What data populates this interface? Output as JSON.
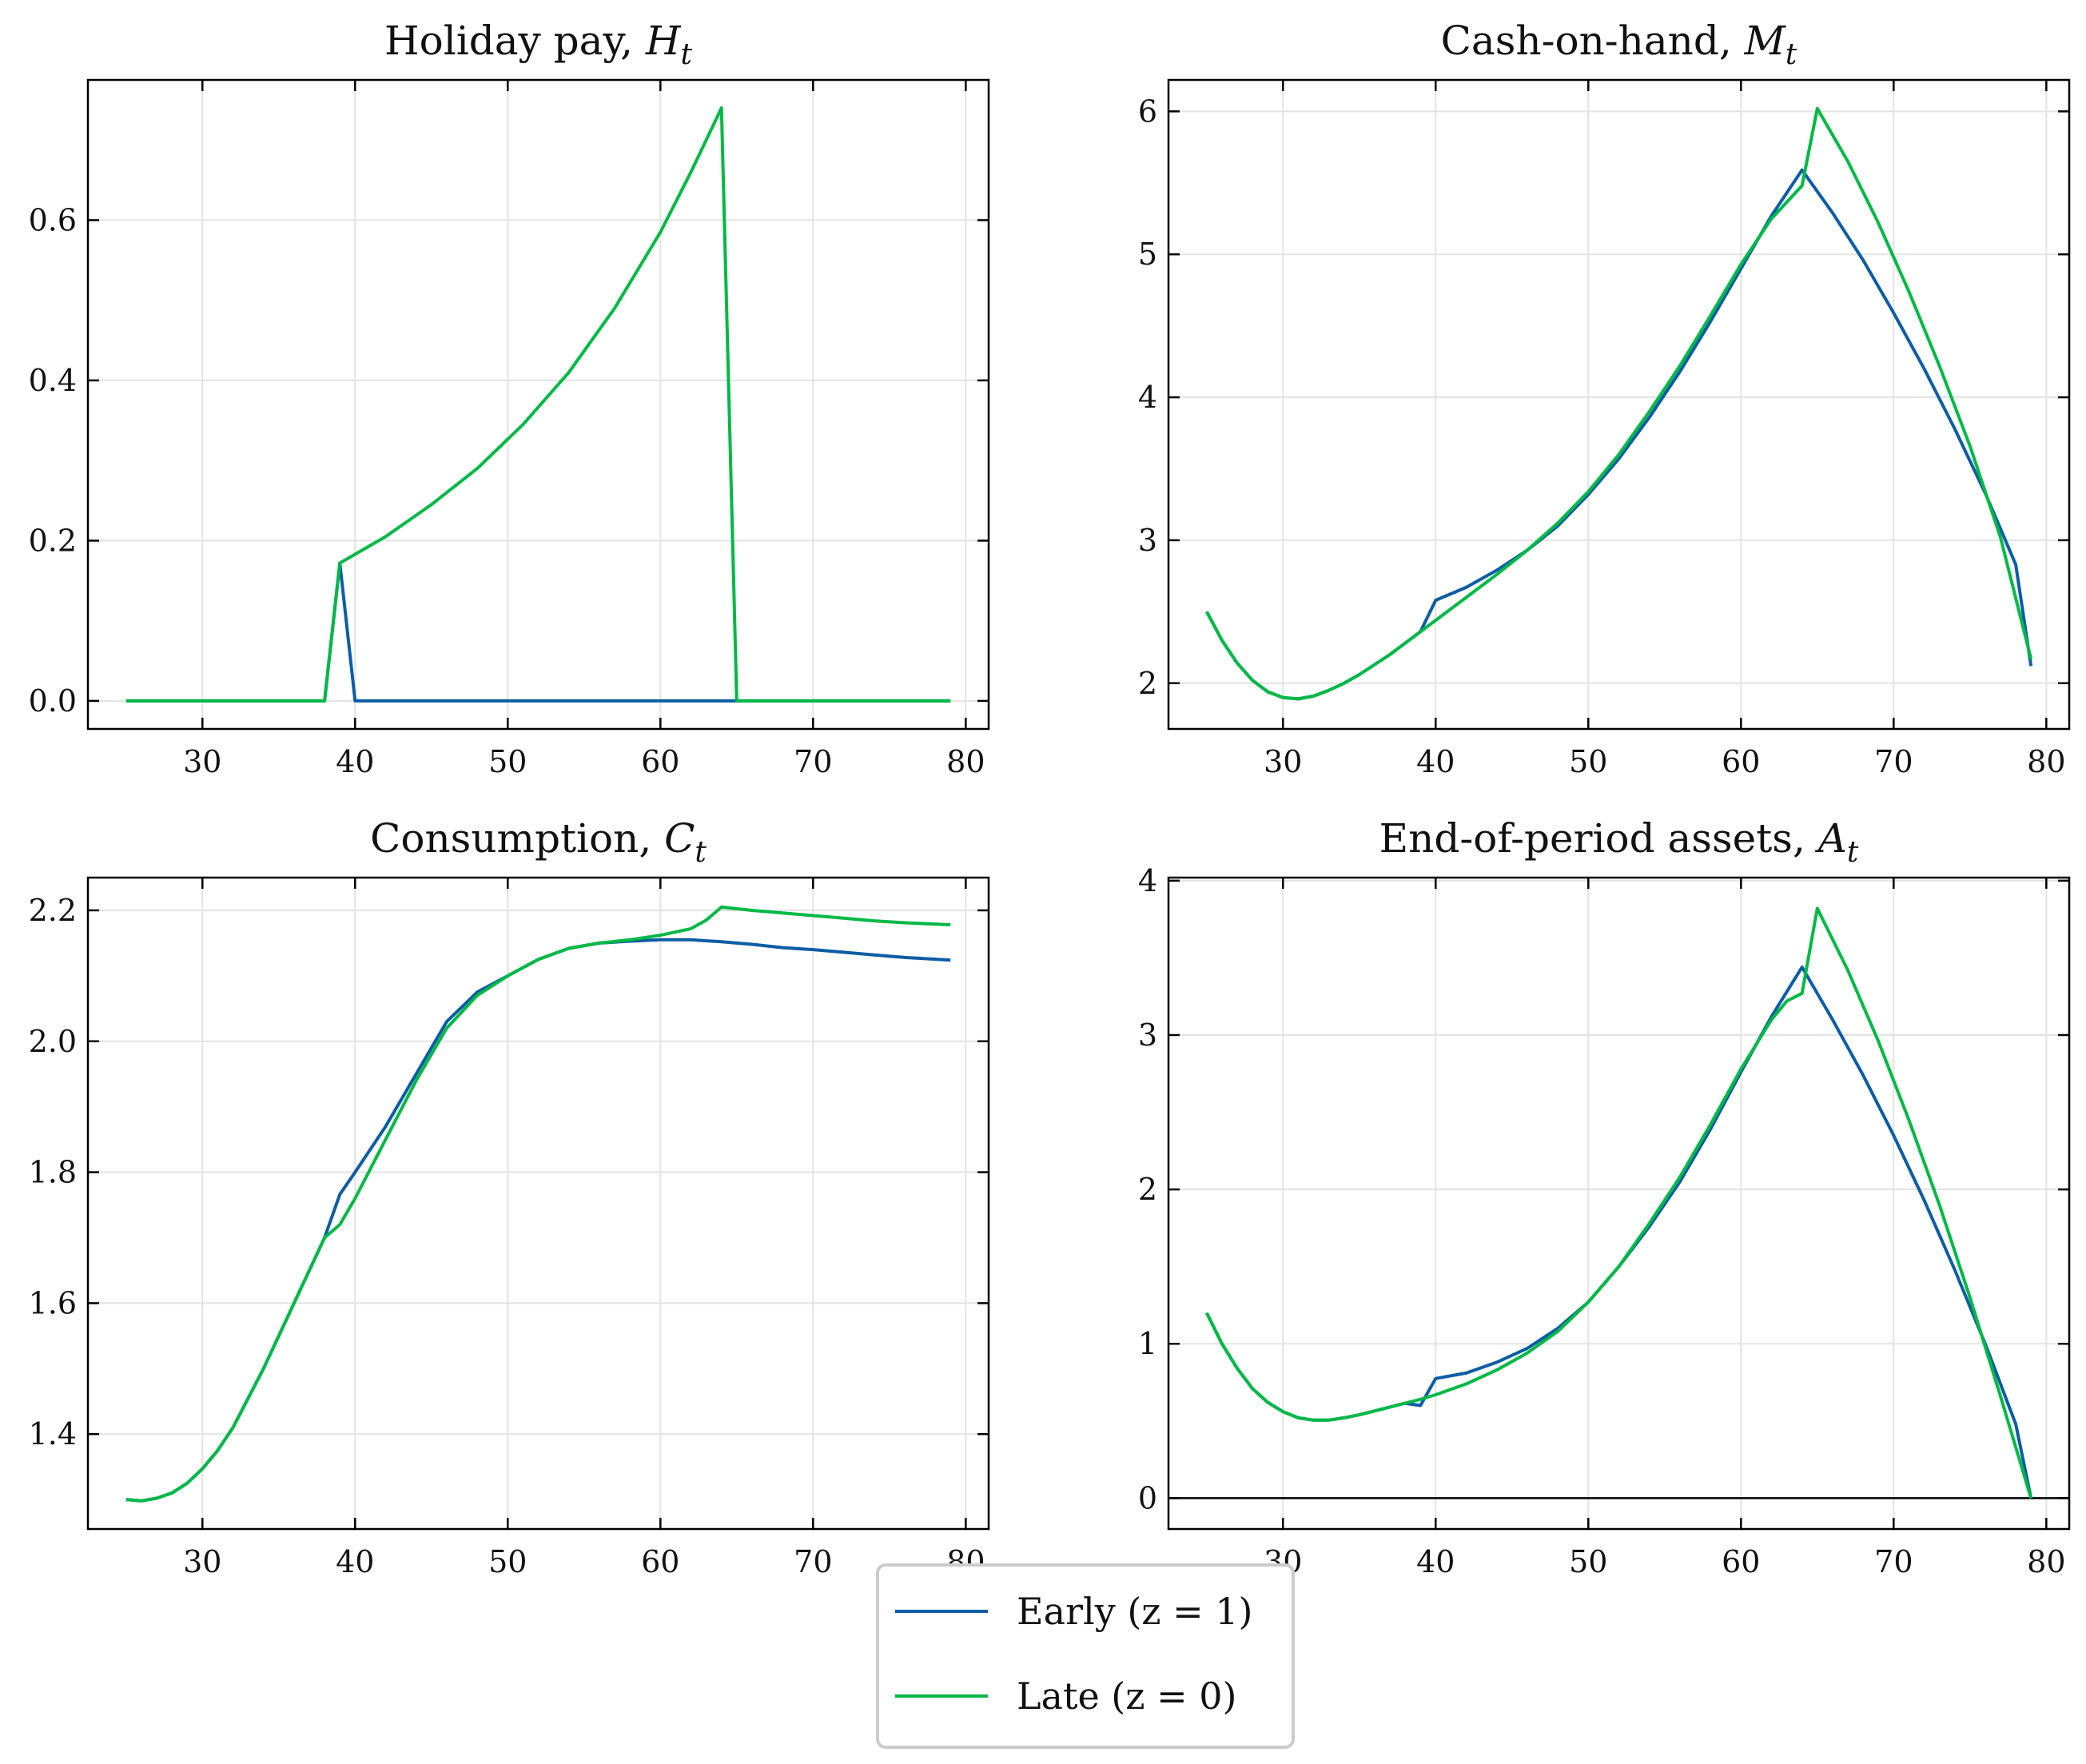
{
  "colors": {
    "early": "#0C5DA5",
    "late": "#00B945",
    "grid": "#e3e3e3",
    "axis": "#000000"
  },
  "legend": {
    "placement": "bottom-center",
    "items": [
      {
        "name": "Early (z = 1)",
        "color": "#0C5DA5"
      },
      {
        "name": "Late (z = 0)",
        "color": "#00B945"
      }
    ]
  },
  "chart_data": [
    {
      "type": "line",
      "title": "Holiday pay, H",
      "title_sub": "t",
      "xlabel": "",
      "ylabel": "",
      "xlim": [
        22.5,
        81.5
      ],
      "ylim": [
        -0.035,
        0.775
      ],
      "xticks": [
        30,
        40,
        50,
        60,
        70,
        80
      ],
      "yticks": [
        0.0,
        0.2,
        0.4,
        0.6
      ],
      "ytick_labels": [
        "0.0",
        "0.2",
        "0.4",
        "0.6"
      ],
      "grid": true,
      "zero_line": false,
      "series": [
        {
          "name": "Early (z = 1)",
          "x": [
            25,
            38,
            39,
            40,
            79
          ],
          "y": [
            0,
            0,
            0.172,
            0,
            0
          ]
        },
        {
          "name": "Late (z = 0)",
          "x": [
            25,
            38,
            39,
            42,
            45,
            48,
            51,
            54,
            57,
            60,
            62,
            63,
            64,
            65,
            79
          ],
          "y": [
            0,
            0,
            0.172,
            0.205,
            0.245,
            0.29,
            0.345,
            0.41,
            0.49,
            0.585,
            0.66,
            0.7,
            0.74,
            0,
            0
          ]
        }
      ]
    },
    {
      "type": "line",
      "title": "Cash-on-hand, M",
      "title_sub": "t",
      "xlabel": "",
      "ylabel": "",
      "xlim": [
        22.5,
        81.5
      ],
      "ylim": [
        1.68,
        6.22
      ],
      "xticks": [
        30,
        40,
        50,
        60,
        70,
        80
      ],
      "yticks": [
        2,
        3,
        4,
        5,
        6
      ],
      "ytick_labels": [
        "2",
        "3",
        "4",
        "5",
        "6"
      ],
      "grid": true,
      "zero_line": false,
      "series": [
        {
          "name": "Early (z = 1)",
          "x": [
            25,
            26,
            27,
            28,
            29,
            30,
            31,
            32,
            33,
            34,
            35,
            36,
            37,
            38,
            39,
            40,
            42,
            44,
            46,
            48,
            50,
            52,
            54,
            56,
            58,
            60,
            62,
            64,
            66,
            68,
            70,
            72,
            74,
            76,
            78,
            79
          ],
          "y": [
            2.5,
            2.3,
            2.14,
            2.02,
            1.94,
            1.9,
            1.89,
            1.91,
            1.95,
            2.0,
            2.06,
            2.13,
            2.2,
            2.28,
            2.36,
            2.58,
            2.67,
            2.79,
            2.93,
            3.1,
            3.32,
            3.57,
            3.86,
            4.18,
            4.53,
            4.9,
            5.27,
            5.59,
            5.29,
            4.96,
            4.59,
            4.2,
            3.78,
            3.33,
            2.83,
            2.12
          ]
        },
        {
          "name": "Late (z = 0)",
          "x": [
            25,
            26,
            27,
            28,
            29,
            30,
            31,
            32,
            33,
            34,
            35,
            36,
            37,
            38,
            39,
            40,
            42,
            44,
            46,
            48,
            50,
            52,
            54,
            56,
            58,
            60,
            62,
            64,
            65,
            67,
            69,
            71,
            73,
            75,
            77,
            79
          ],
          "y": [
            2.5,
            2.3,
            2.14,
            2.02,
            1.94,
            1.9,
            1.89,
            1.91,
            1.95,
            2.0,
            2.06,
            2.13,
            2.2,
            2.28,
            2.36,
            2.44,
            2.6,
            2.76,
            2.93,
            3.12,
            3.34,
            3.6,
            3.9,
            4.22,
            4.57,
            4.93,
            5.25,
            5.48,
            6.02,
            5.65,
            5.22,
            4.74,
            4.22,
            3.66,
            3.02,
            2.17
          ]
        }
      ]
    },
    {
      "type": "line",
      "title": "Consumption, C",
      "title_sub": "t",
      "xlabel": "",
      "ylabel": "",
      "xlim": [
        22.5,
        81.5
      ],
      "ylim": [
        1.255,
        2.25
      ],
      "xticks": [
        30,
        40,
        50,
        60,
        70,
        80
      ],
      "yticks": [
        1.4,
        1.6,
        1.8,
        2.0,
        2.2
      ],
      "ytick_labels": [
        "1.4",
        "1.6",
        "1.8",
        "2.0",
        "2.2"
      ],
      "grid": true,
      "zero_line": false,
      "series": [
        {
          "name": "Early (z = 1)",
          "x": [
            25,
            26,
            27,
            28,
            29,
            30,
            31,
            32,
            33,
            34,
            35,
            36,
            37,
            38,
            39,
            40,
            42,
            44,
            46,
            48,
            50,
            52,
            54,
            56,
            58,
            60,
            62,
            64,
            66,
            68,
            70,
            72,
            74,
            76,
            79
          ],
          "y": [
            1.3,
            1.298,
            1.302,
            1.31,
            1.325,
            1.347,
            1.375,
            1.41,
            1.455,
            1.5,
            1.55,
            1.6,
            1.65,
            1.7,
            1.766,
            1.8,
            1.87,
            1.95,
            2.03,
            2.075,
            2.1,
            2.125,
            2.142,
            2.15,
            2.153,
            2.155,
            2.155,
            2.152,
            2.148,
            2.143,
            2.14,
            2.136,
            2.132,
            2.128,
            2.124
          ]
        },
        {
          "name": "Late (z = 0)",
          "x": [
            25,
            26,
            27,
            28,
            29,
            30,
            31,
            32,
            33,
            34,
            35,
            36,
            37,
            38,
            39,
            40,
            42,
            44,
            46,
            48,
            50,
            52,
            54,
            56,
            58,
            60,
            62,
            63,
            64,
            66,
            68,
            70,
            72,
            74,
            76,
            79
          ],
          "y": [
            1.3,
            1.298,
            1.302,
            1.31,
            1.325,
            1.347,
            1.375,
            1.41,
            1.455,
            1.5,
            1.55,
            1.6,
            1.65,
            1.7,
            1.72,
            1.76,
            1.85,
            1.94,
            2.02,
            2.07,
            2.1,
            2.125,
            2.142,
            2.15,
            2.155,
            2.162,
            2.172,
            2.185,
            2.205,
            2.2,
            2.196,
            2.192,
            2.188,
            2.184,
            2.181,
            2.178
          ]
        }
      ]
    },
    {
      "type": "line",
      "title": "End-of-period assets, A",
      "title_sub": "t",
      "xlabel": "",
      "ylabel": "",
      "xlim": [
        22.5,
        81.5
      ],
      "ylim": [
        -0.2,
        4.02
      ],
      "xticks": [
        30,
        40,
        50,
        60,
        70,
        80
      ],
      "yticks": [
        0,
        1,
        2,
        3,
        4
      ],
      "ytick_labels": [
        "0",
        "1",
        "2",
        "3",
        "4"
      ],
      "grid": true,
      "zero_line": true,
      "series": [
        {
          "name": "Early (z = 1)",
          "x": [
            25,
            26,
            27,
            28,
            29,
            30,
            31,
            32,
            33,
            34,
            35,
            36,
            37,
            38,
            39,
            40,
            42,
            44,
            46,
            48,
            50,
            52,
            54,
            56,
            58,
            60,
            62,
            64,
            66,
            68,
            70,
            72,
            74,
            76,
            78,
            79
          ],
          "y": [
            1.2,
            1.0,
            0.84,
            0.71,
            0.62,
            0.56,
            0.52,
            0.505,
            0.505,
            0.52,
            0.54,
            0.565,
            0.59,
            0.615,
            0.6,
            0.775,
            0.81,
            0.88,
            0.97,
            1.1,
            1.27,
            1.5,
            1.76,
            2.05,
            2.39,
            2.76,
            3.12,
            3.44,
            3.1,
            2.74,
            2.35,
            1.93,
            1.48,
            1.0,
            0.48,
            0.0
          ]
        },
        {
          "name": "Late (z = 0)",
          "x": [
            25,
            26,
            27,
            28,
            29,
            30,
            31,
            32,
            33,
            34,
            35,
            36,
            37,
            38,
            39,
            40,
            42,
            44,
            46,
            48,
            50,
            52,
            54,
            56,
            58,
            60,
            62,
            63,
            64,
            65,
            67,
            69,
            71,
            73,
            75,
            77,
            79
          ],
          "y": [
            1.2,
            1.0,
            0.84,
            0.71,
            0.62,
            0.56,
            0.52,
            0.505,
            0.505,
            0.52,
            0.54,
            0.565,
            0.59,
            0.615,
            0.64,
            0.67,
            0.74,
            0.83,
            0.94,
            1.08,
            1.27,
            1.5,
            1.78,
            2.08,
            2.42,
            2.78,
            3.1,
            3.22,
            3.27,
            3.82,
            3.42,
            2.96,
            2.45,
            1.9,
            1.3,
            0.66,
            0.0
          ]
        }
      ]
    }
  ]
}
